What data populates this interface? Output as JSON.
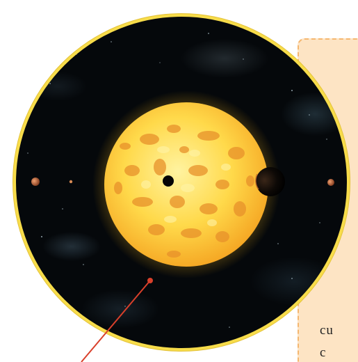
{
  "panel": {
    "line1": "cu",
    "line2": "c"
  },
  "colors": {
    "circle_border": "#f7dc4a",
    "space_background": "#05080b",
    "star_core": "#ffe66a",
    "star_mottling": "#e8912a",
    "panel_fill": "#fde4c4",
    "panel_border": "#f5b770",
    "pointer_line": "#d9402b"
  },
  "icons": {
    "star": "star-illustration",
    "planets": "planet-illustration",
    "pointer": "pointer-line"
  }
}
